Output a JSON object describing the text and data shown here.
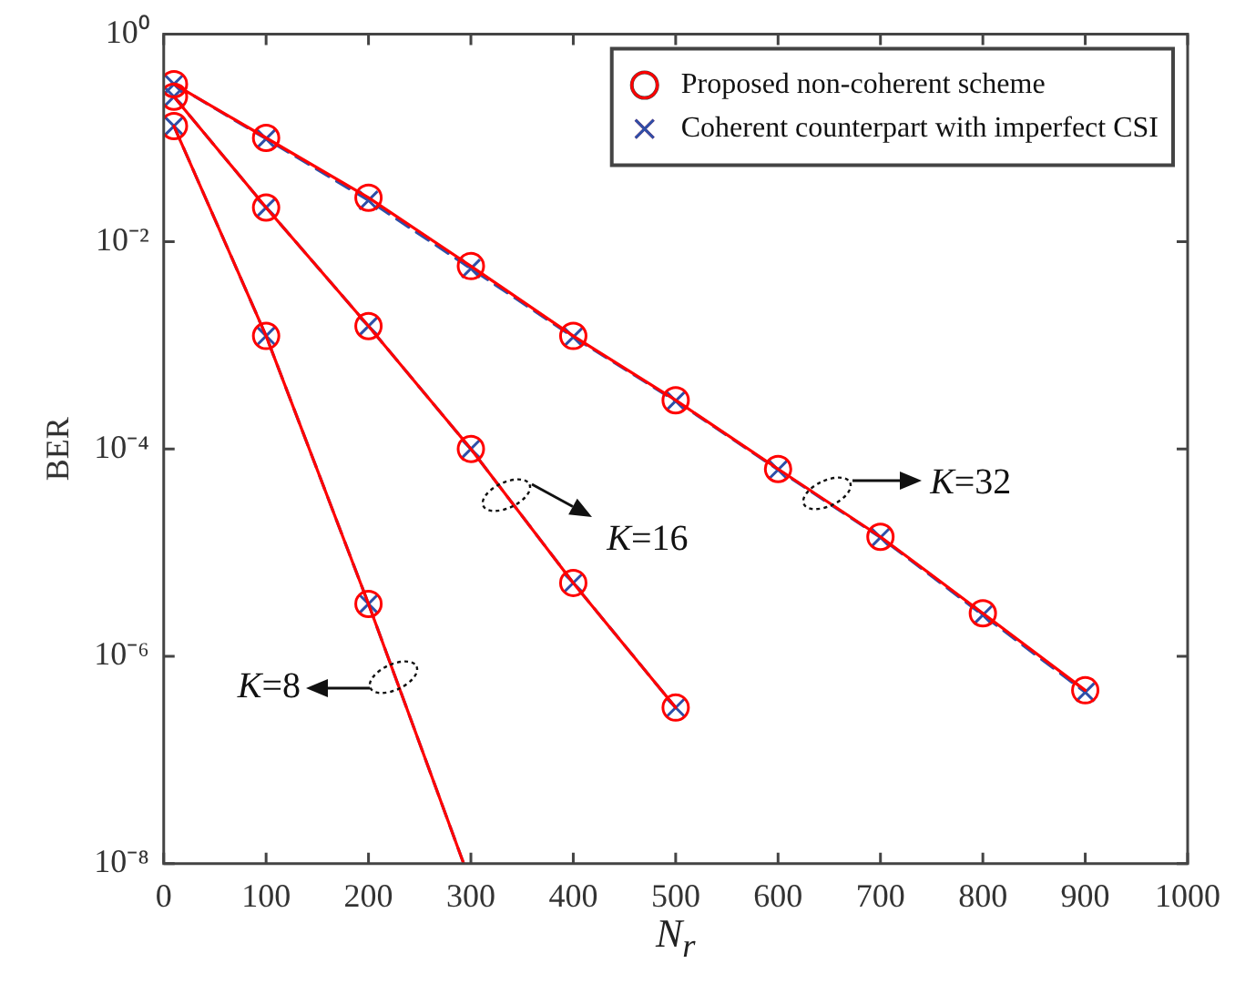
{
  "chart_data": {
    "type": "line",
    "xlabel": "N$_{r}$",
    "ylabel": "BER",
    "log": "y",
    "grid": false,
    "legend": "top right",
    "xlim": [
      0,
      1000
    ],
    "xticks": [
      0,
      100,
      200,
      300,
      400,
      500,
      600,
      700,
      800,
      900,
      1000
    ],
    "ylim": [
      1e-08,
      1
    ],
    "yticks": [
      {
        "value": 1e-08,
        "label": "10⁻⁸"
      },
      {
        "value": 1e-06,
        "label": "10⁻⁶"
      },
      {
        "value": 0.0001,
        "label": "10⁻⁴"
      },
      {
        "value": 0.01,
        "label": "10⁻²"
      },
      {
        "value": 1,
        "label": "10⁰"
      }
    ],
    "series": [
      {
        "name": "Proposed non-coherent scheme",
        "color": "#ff0000",
        "marker": "circle",
        "line_style": "solid",
        "x": [
          10,
          100,
          200,
          300,
          400,
          500,
          600,
          700,
          800,
          900
        ],
        "values": [
          0.33,
          0.1,
          0.0265,
          0.0058,
          0.00123,
          0.000295,
          6.4e-05,
          1.42e-05,
          2.6e-06,
          4.7e-07
        ]
      },
      {
        "color": "#ff0000",
        "marker": "circle",
        "line_style": "solid",
        "x": [
          10,
          100,
          200,
          300,
          400,
          500
        ],
        "values": [
          0.25,
          0.0213,
          0.00153,
          0.0001,
          5.1e-06,
          3.2e-07
        ]
      },
      {
        "color": "#ff0000",
        "marker": "circle",
        "line_style": "solid",
        "x": [
          10,
          100,
          200
        ],
        "values": [
          0.13,
          0.00123,
          3.2e-06
        ]
      },
      {
        "color": "#ff0000",
        "marker": "none",
        "line_style": "solid",
        "x": [
          200,
          293
        ],
        "values": [
          3.2e-06,
          1e-08
        ]
      },
      {
        "name": "Coherent counterpart with imperfect CSI",
        "color": "#2e4fa8",
        "marker": "cross",
        "line_style": "dashed",
        "x": [
          10,
          100,
          200,
          300,
          400,
          500,
          600,
          700,
          800,
          900
        ],
        "values": [
          0.33,
          0.098,
          0.025,
          0.0055,
          0.0012,
          0.00029,
          6.3e-05,
          1.4e-05,
          2.5e-06,
          4.5e-07
        ]
      },
      {
        "color": "#2e4fa8",
        "marker": "cross",
        "line_style": "dashed",
        "x": [
          10,
          100,
          200,
          300,
          400,
          500
        ],
        "values": [
          0.25,
          0.0213,
          0.00153,
          0.0001,
          5.1e-06,
          3.2e-07
        ]
      },
      {
        "color": "#2e4fa8",
        "marker": "cross",
        "line_style": "dashed",
        "x": [
          10,
          100,
          200
        ],
        "values": [
          0.13,
          0.00123,
          3.2e-06
        ]
      },
      {
        "color": "#2e4fa8",
        "marker": "none",
        "line_style": "dashed",
        "x": [
          200,
          293
        ],
        "values": [
          3.2e-06,
          1e-08
        ]
      }
    ],
    "annotations": [
      {
        "text": "K=16",
        "x": 335,
        "y": 3.6e-05
      },
      {
        "text": "K=32",
        "x": 647,
        "y": 3.7e-05
      },
      {
        "text": "K=8",
        "x": 225,
        "y": 6.3e-07
      }
    ]
  }
}
